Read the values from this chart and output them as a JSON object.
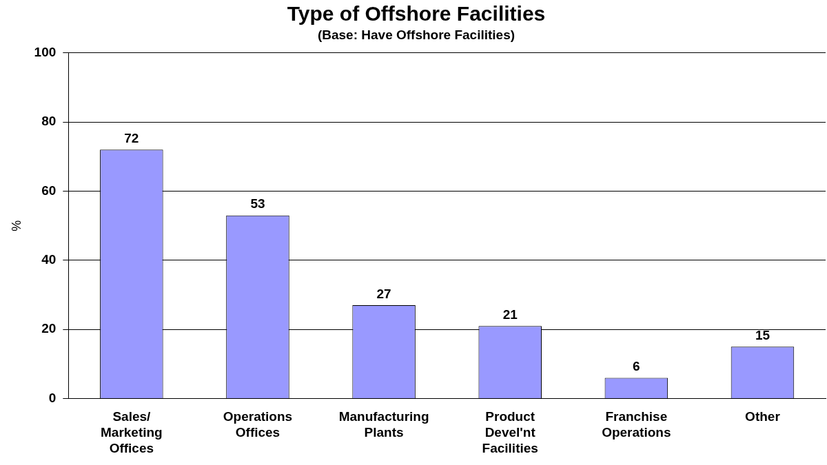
{
  "chart_data": {
    "type": "bar",
    "title": "Type of Offshore Facilities",
    "subtitle": "(Base: Have Offshore Facilities)",
    "ylabel": "%",
    "categories": [
      "Sales/ Marketing Offices",
      "Operations Offices",
      "Manufacturing Plants",
      "Product Devel'nt Facilities",
      "Franchise Operations",
      "Other"
    ],
    "values": [
      72,
      53,
      27,
      21,
      6,
      15
    ],
    "color": "#9999ff",
    "ylim": [
      0,
      100
    ],
    "yticks": [
      0,
      20,
      40,
      60,
      80,
      100
    ],
    "grid": "y",
    "data_labels": true,
    "legend": false
  }
}
